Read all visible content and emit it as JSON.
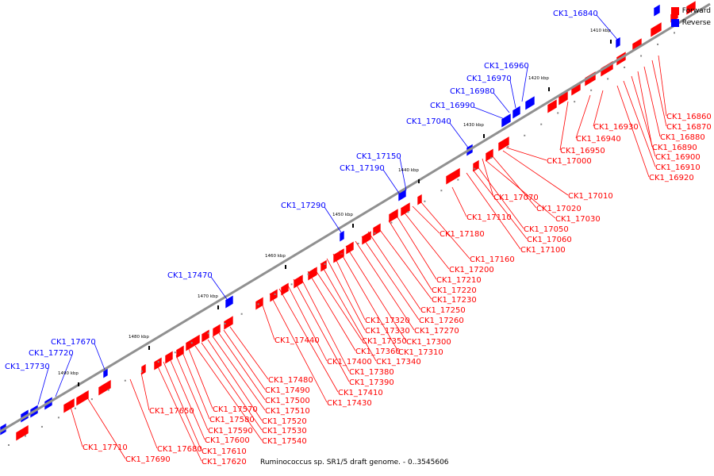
{
  "caption": "Ruminococcus sp. SR1/5 draft genome. - 0..3545606",
  "legend": [
    {
      "label": "Forward",
      "color": "#ff0000"
    },
    {
      "label": "Reverse",
      "color": "#0000ff"
    }
  ],
  "colors": {
    "forward": "#ff0000",
    "reverse": "#0000ff",
    "backbone": "#909090"
  },
  "ticks": [
    "1410 kbp",
    "1420 kbp",
    "1430 kbp",
    "1440 kbp",
    "1450 kbp",
    "1460 kbp",
    "1470 kbp",
    "1480 kbp",
    "1490 kbp"
  ],
  "reverse_labels": [
    "CK1_16840",
    "CK1_16960",
    "CK1_16970",
    "CK1_16980",
    "CK1_16990",
    "CK1_17040",
    "CK1_17150",
    "CK1_17190",
    "CK1_17290",
    "CK1_17470",
    "CK1_17670",
    "CK1_17720",
    "CK1_17730"
  ],
  "forward_labels": [
    "CK1_16860",
    "CK1_16870",
    "CK1_16880",
    "CK1_16890",
    "CK1_16900",
    "CK1_16910",
    "CK1_16920",
    "CK1_16930",
    "CK1_16940",
    "CK1_16950",
    "CK1_17000",
    "CK1_17010",
    "CK1_17020",
    "CK1_17030",
    "CK1_17050",
    "CK1_17060",
    "CK1_17070",
    "CK1_17100",
    "CK1_17110",
    "CK1_17160",
    "CK1_17180",
    "CK1_17200",
    "CK1_17210",
    "CK1_17220",
    "CK1_17230",
    "CK1_17250",
    "CK1_17260",
    "CK1_17270",
    "CK1_17300",
    "CK1_17310",
    "CK1_17320",
    "CK1_17330",
    "CK1_17340",
    "CK1_17350",
    "CK1_17360",
    "CK1_17380",
    "CK1_17390",
    "CK1_17400",
    "CK1_17410",
    "CK1_17430",
    "CK1_17440",
    "CK1_17480",
    "CK1_17490",
    "CK1_17500",
    "CK1_17510",
    "CK1_17520",
    "CK1_17530",
    "CK1_17540",
    "CK1_17570",
    "CK1_17580",
    "CK1_17590",
    "CK1_17600",
    "CK1_17610",
    "CK1_17620",
    "CK1_17650",
    "CK1_17680",
    "CK1_17690",
    "CK1_17710"
  ]
}
